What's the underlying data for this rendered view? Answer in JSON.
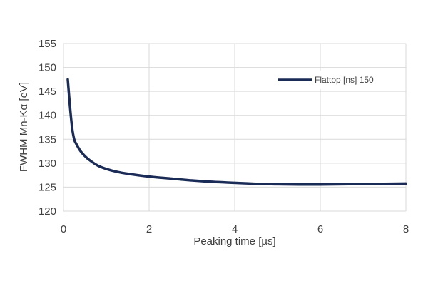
{
  "chart_data": {
    "type": "line",
    "title": "",
    "xlabel": "Peaking time [µs]",
    "ylabel": "FWHM Mn-Kα [eV]",
    "xlim": [
      0,
      8
    ],
    "ylim": [
      120,
      155
    ],
    "xticks": [
      0,
      2,
      4,
      6,
      8
    ],
    "yticks": [
      120,
      125,
      130,
      135,
      140,
      145,
      150,
      155
    ],
    "grid": true,
    "legend_position": "top-right",
    "series": [
      {
        "name": "Flattop [ns] 150",
        "color": "#1a2b57",
        "x": [
          0.1,
          0.15,
          0.2,
          0.25,
          0.3,
          0.4,
          0.5,
          0.6,
          0.8,
          1.0,
          1.25,
          1.5,
          2.0,
          2.5,
          3.0,
          3.5,
          4.0,
          4.5,
          5.0,
          5.5,
          6.0,
          6.5,
          7.0,
          7.5,
          8.0
        ],
        "y": [
          147.5,
          142,
          137.5,
          135,
          134,
          132.5,
          131.5,
          130.7,
          129.5,
          128.8,
          128.2,
          127.8,
          127.2,
          126.8,
          126.4,
          126.1,
          125.9,
          125.7,
          125.6,
          125.55,
          125.55,
          125.6,
          125.65,
          125.7,
          125.75
        ]
      }
    ]
  }
}
